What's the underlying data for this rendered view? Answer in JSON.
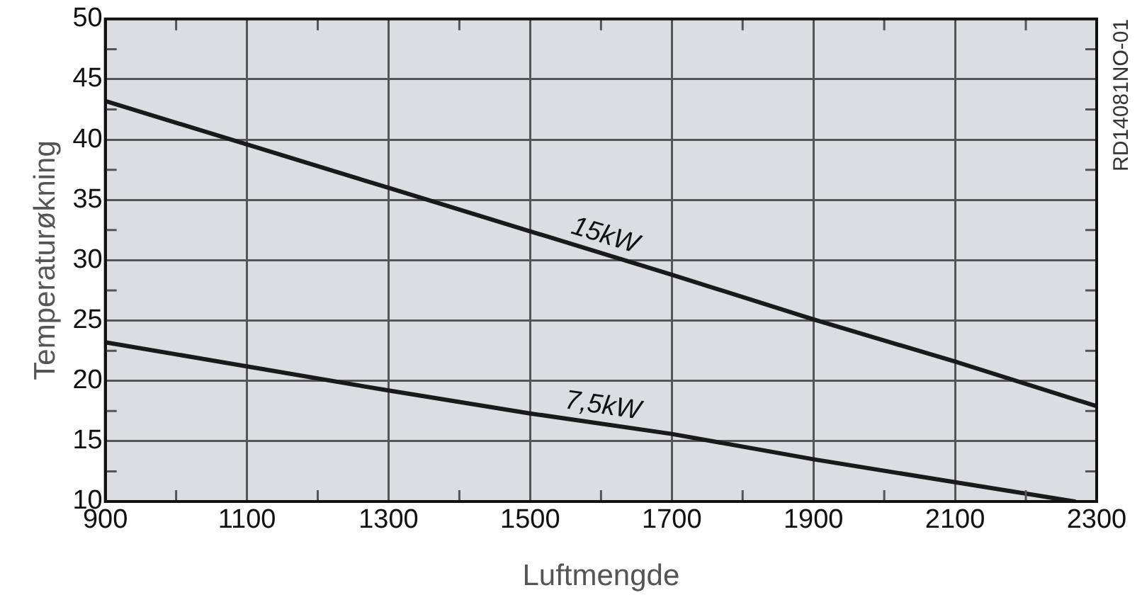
{
  "chart_data": {
    "type": "line",
    "xlabel": "Luftmengde",
    "ylabel": "Temperaturøkning",
    "xlim": [
      900,
      2300
    ],
    "ylim": [
      10,
      50
    ],
    "xticks": [
      900,
      {
        "value": 1000,
        "label": null
      },
      1100,
      {
        "value": 1200,
        "label": null
      },
      1300,
      {
        "value": 1400,
        "label": null
      },
      1500,
      {
        "value": 1600,
        "label": null
      },
      1700,
      {
        "value": 1800,
        "label": null
      },
      1900,
      {
        "value": 2000,
        "label": null
      },
      2100,
      {
        "value": 2200,
        "label": null
      },
      2300
    ],
    "yticks": [
      10,
      {
        "value": 12.5,
        "label": null
      },
      15,
      {
        "value": 17.5,
        "label": null
      },
      20,
      {
        "value": 22.5,
        "label": null
      },
      25,
      {
        "value": 27.5,
        "label": null
      },
      30,
      {
        "value": 32.5,
        "label": null
      },
      35,
      {
        "value": 37.5,
        "label": null
      },
      40,
      {
        "value": 42.5,
        "label": null
      },
      45,
      {
        "value": 47.5,
        "label": null
      },
      50
    ],
    "grid": true,
    "legend": false,
    "marker": "none",
    "line_style": "solid",
    "annotations": [
      "RD14081NO-01"
    ],
    "series": [
      {
        "name": "15kW",
        "color": "#1a1a1a",
        "x": [
          900,
          1100,
          1300,
          1500,
          1700,
          1900,
          2100,
          2300
        ],
        "values": [
          43.2,
          39.6,
          36,
          32.4,
          28.8,
          25.1,
          21.6,
          17.9
        ]
      },
      {
        "name": "7,5kW",
        "color": "#1a1a1a",
        "x": [
          900,
          1100,
          1300,
          1500,
          1700,
          1900,
          2100,
          2269
        ],
        "values": [
          23.2,
          21.2,
          19.2,
          17.3,
          15.6,
          13.5,
          11.6,
          10
        ]
      }
    ]
  }
}
